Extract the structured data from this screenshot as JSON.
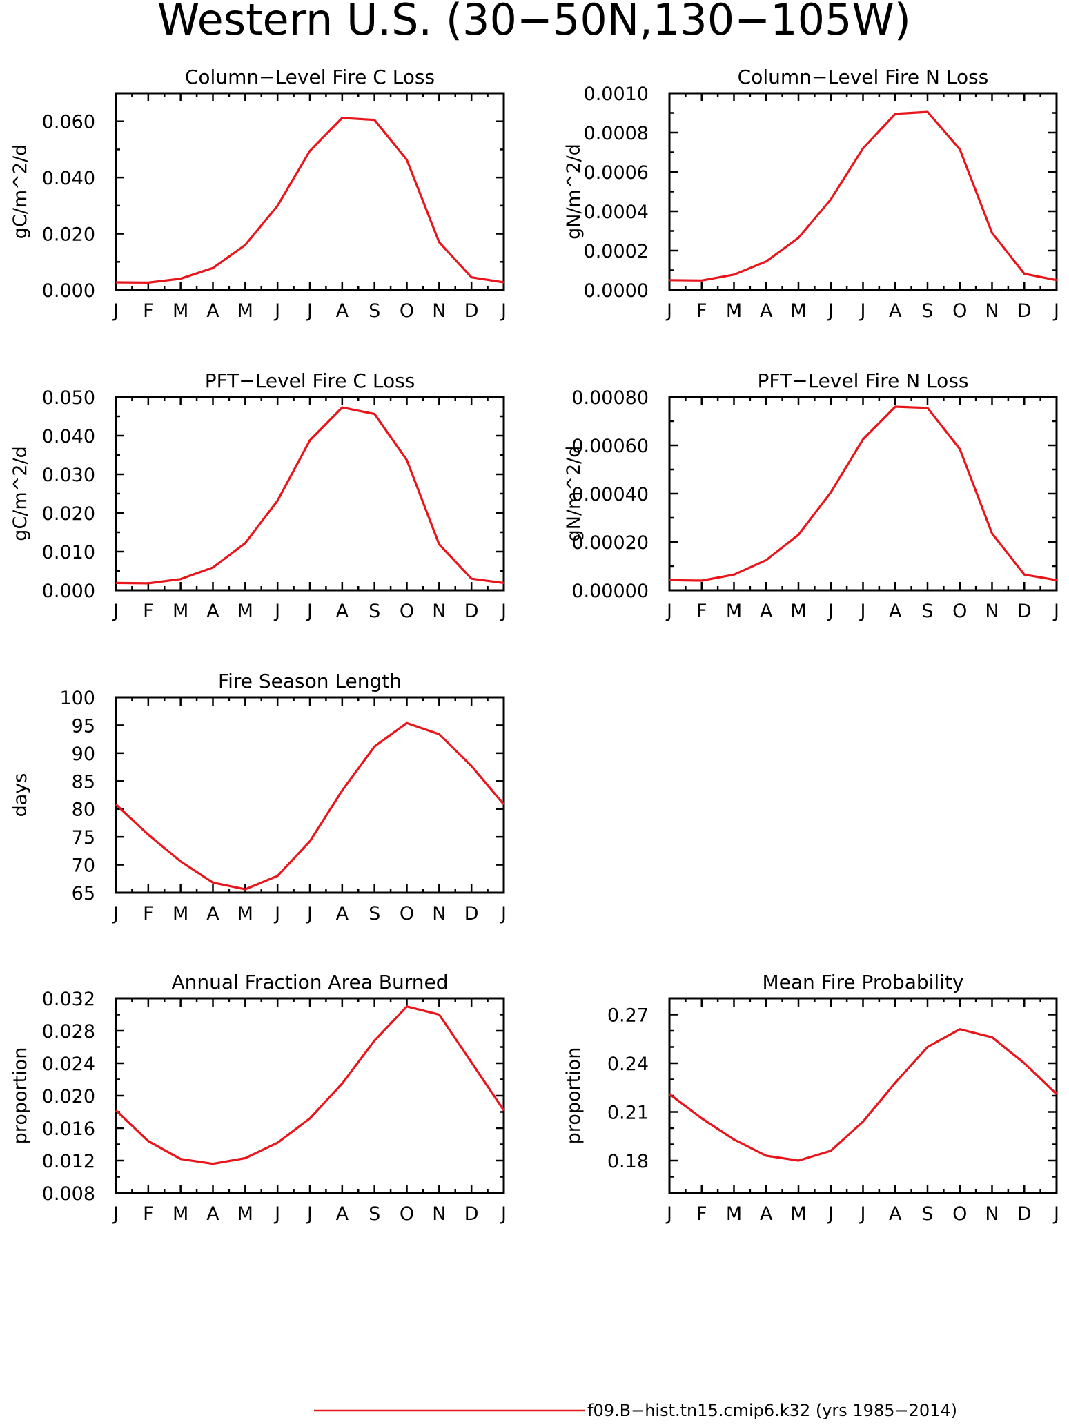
{
  "title": "Western U.S. (30−50N,130−105W)",
  "months": [
    "J",
    "F",
    "M",
    "A",
    "M",
    "J",
    "J",
    "A",
    "S",
    "O",
    "N",
    "D",
    "J"
  ],
  "series_color": "#e8151b",
  "legend": {
    "label": "f09.B−hist.tn15.cmip6.k32 (yrs 1985−2014)"
  },
  "chart_data": [
    {
      "type": "line",
      "title": "Column−Level Fire C Loss",
      "ylabel": "gC/m^2/d",
      "x": [
        "J",
        "F",
        "M",
        "A",
        "M",
        "J",
        "J",
        "A",
        "S",
        "O",
        "N",
        "D",
        "J"
      ],
      "ylim": [
        0.0,
        0.07
      ],
      "yticks": [
        0.0,
        0.02,
        0.04,
        0.06
      ],
      "ytick_labels": [
        "0.000",
        "0.020",
        "0.040",
        "0.060"
      ],
      "yminor": [
        0.01,
        0.03,
        0.05,
        0.07
      ],
      "series": [
        {
          "values": [
            0.0027,
            0.0026,
            0.004,
            0.0078,
            0.016,
            0.03,
            0.0495,
            0.0612,
            0.0605,
            0.0463,
            0.017,
            0.0045,
            0.0027
          ]
        }
      ]
    },
    {
      "type": "line",
      "title": "Column−Level Fire N Loss",
      "ylabel": "gN/m^2/d",
      "x": [
        "J",
        "F",
        "M",
        "A",
        "M",
        "J",
        "J",
        "A",
        "S",
        "O",
        "N",
        "D",
        "J"
      ],
      "ylim": [
        0.0,
        0.001
      ],
      "yticks": [
        0.0,
        0.0002,
        0.0004,
        0.0006,
        0.0008,
        0.001
      ],
      "ytick_labels": [
        "0.0000",
        "0.0002",
        "0.0004",
        "0.0006",
        "0.0008",
        "0.0010"
      ],
      "yminor": [
        0.0001,
        0.0003,
        0.0005,
        0.0007,
        0.0009
      ],
      "series": [
        {
          "values": [
            5e-05,
            4.8e-05,
            7.8e-05,
            0.000145,
            0.000265,
            0.00046,
            0.00072,
            0.000895,
            0.000905,
            0.000715,
            0.00029,
            8.2e-05,
            5e-05
          ]
        }
      ]
    },
    {
      "type": "line",
      "title": "PFT−Level Fire C Loss",
      "ylabel": "gC/m^2/d",
      "x": [
        "J",
        "F",
        "M",
        "A",
        "M",
        "J",
        "J",
        "A",
        "S",
        "O",
        "N",
        "D",
        "J"
      ],
      "ylim": [
        0.0,
        0.05
      ],
      "yticks": [
        0.0,
        0.01,
        0.02,
        0.03,
        0.04,
        0.05
      ],
      "ytick_labels": [
        "0.000",
        "0.010",
        "0.020",
        "0.030",
        "0.040",
        "0.050"
      ],
      "yminor": [
        0.005,
        0.015,
        0.025,
        0.035,
        0.045
      ],
      "series": [
        {
          "values": [
            0.0019,
            0.0018,
            0.0029,
            0.0059,
            0.0122,
            0.0232,
            0.0388,
            0.0473,
            0.0456,
            0.0337,
            0.0119,
            0.003,
            0.0019
          ]
        }
      ]
    },
    {
      "type": "line",
      "title": "PFT−Level Fire N Loss",
      "ylabel": "gN/m^2/d",
      "x": [
        "J",
        "F",
        "M",
        "A",
        "M",
        "J",
        "J",
        "A",
        "S",
        "O",
        "N",
        "D",
        "J"
      ],
      "ylim": [
        0.0,
        0.0008
      ],
      "yticks": [
        0.0,
        0.0002,
        0.0004,
        0.0006,
        0.0008
      ],
      "ytick_labels": [
        "0.00000",
        "0.00020",
        "0.00040",
        "0.00060",
        "0.00080"
      ],
      "yminor": [
        0.0001,
        0.0003,
        0.0005,
        0.0007
      ],
      "series": [
        {
          "values": [
            4.2e-05,
            4e-05,
            6.5e-05,
            0.000125,
            0.00023,
            0.000405,
            0.000625,
            0.00076,
            0.000755,
            0.000585,
            0.000235,
            6.5e-05,
            4.2e-05
          ]
        }
      ]
    },
    {
      "type": "line",
      "title": "Fire Season Length",
      "ylabel": "days",
      "x": [
        "J",
        "F",
        "M",
        "A",
        "M",
        "J",
        "J",
        "A",
        "S",
        "O",
        "N",
        "D",
        "J"
      ],
      "ylim": [
        65,
        100
      ],
      "yticks": [
        65,
        70,
        75,
        80,
        85,
        90,
        95,
        100
      ],
      "ytick_labels": [
        "65",
        "70",
        "75",
        "80",
        "85",
        "90",
        "95",
        "100"
      ],
      "yminor": [],
      "series": [
        {
          "values": [
            80.8,
            75.4,
            70.6,
            66.8,
            65.6,
            68.0,
            74.2,
            83.3,
            91.2,
            95.4,
            93.4,
            87.7,
            80.8
          ]
        }
      ]
    },
    {
      "type": "line",
      "title": "Annual Fraction Area Burned",
      "ylabel": "proportion",
      "x": [
        "J",
        "F",
        "M",
        "A",
        "M",
        "J",
        "J",
        "A",
        "S",
        "O",
        "N",
        "D",
        "J"
      ],
      "ylim": [
        0.008,
        0.032
      ],
      "yticks": [
        0.008,
        0.012,
        0.016,
        0.02,
        0.024,
        0.028,
        0.032
      ],
      "ytick_labels": [
        "0.008",
        "0.012",
        "0.016",
        "0.020",
        "0.024",
        "0.028",
        "0.032"
      ],
      "yminor": [
        0.01,
        0.014,
        0.018,
        0.022,
        0.026,
        0.03
      ],
      "series": [
        {
          "values": [
            0.0182,
            0.0144,
            0.0122,
            0.0116,
            0.0123,
            0.0142,
            0.0172,
            0.0215,
            0.0268,
            0.031,
            0.03,
            0.0241,
            0.0182
          ]
        }
      ]
    },
    {
      "type": "line",
      "title": "Mean Fire Probability",
      "ylabel": "proportion",
      "x": [
        "J",
        "F",
        "M",
        "A",
        "M",
        "J",
        "J",
        "A",
        "S",
        "O",
        "N",
        "D",
        "J"
      ],
      "ylim": [
        0.16,
        0.28
      ],
      "yticks": [
        0.18,
        0.21,
        0.24,
        0.27
      ],
      "ytick_labels": [
        "0.18",
        "0.21",
        "0.24",
        "0.27"
      ],
      "yminor": [
        0.17,
        0.19,
        0.2,
        0.22,
        0.23,
        0.25,
        0.26,
        0.28
      ],
      "series": [
        {
          "values": [
            0.221,
            0.206,
            0.193,
            0.183,
            0.18,
            0.186,
            0.204,
            0.228,
            0.25,
            0.261,
            0.256,
            0.24,
            0.221
          ]
        }
      ]
    }
  ]
}
